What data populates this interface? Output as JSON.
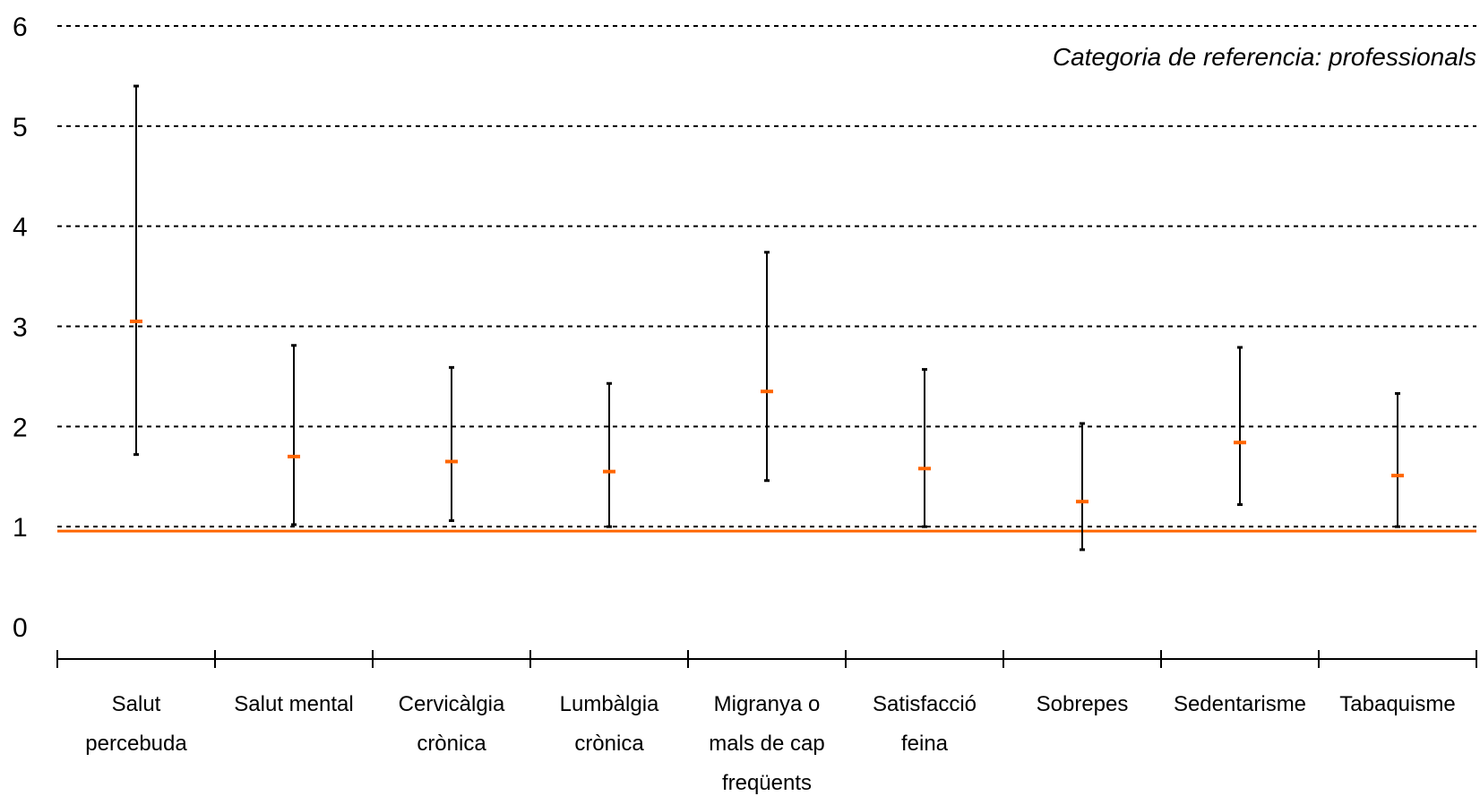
{
  "chart_data": {
    "type": "errorbar",
    "annotation": "Categoria de referencia: professionals",
    "categories": [
      [
        "Salut",
        "percebuda"
      ],
      [
        "Salut mental"
      ],
      [
        "Cervicàlgia",
        "crònica"
      ],
      [
        "Lumbàlgia",
        "crònica"
      ],
      [
        "Migranya o",
        "mals de cap",
        "freqüents"
      ],
      [
        "Satisfacció",
        "feina"
      ],
      [
        "Sobrepes"
      ],
      [
        "Sedentarisme"
      ],
      [
        "Tabaquisme"
      ]
    ],
    "estimates": [
      3.05,
      1.7,
      1.65,
      1.55,
      2.35,
      1.58,
      1.25,
      1.84,
      1.51
    ],
    "lower": [
      1.72,
      1.02,
      1.06,
      1.0,
      1.46,
      1.0,
      0.77,
      1.22,
      1.0
    ],
    "upper": [
      5.4,
      2.81,
      2.59,
      2.43,
      3.74,
      2.57,
      2.03,
      2.79,
      2.33
    ],
    "reference_line": 1,
    "ylim": [
      0,
      6
    ],
    "yticks": [
      0,
      1,
      2,
      3,
      4,
      5,
      6
    ],
    "grid": true,
    "colors": {
      "estimate": "#ff6600",
      "reference": "#ff6600",
      "interval": "#000000",
      "grid": "#000000"
    }
  }
}
